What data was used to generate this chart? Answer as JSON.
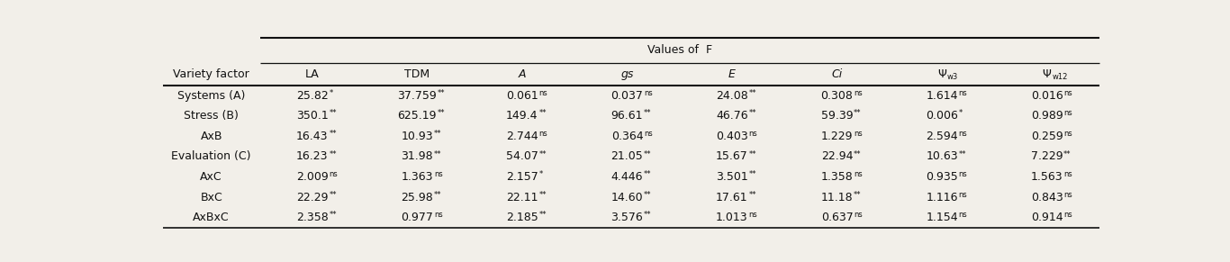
{
  "span_header": "Values of  F",
  "col_headers": [
    "Variety factor",
    "LA",
    "TDM",
    "A",
    "gs",
    "E",
    "Ci",
    "Ψw3",
    "Ψw12"
  ],
  "col_italic": [
    false,
    false,
    false,
    true,
    true,
    true,
    true,
    false,
    false
  ],
  "rows": [
    {
      "label": "Systems (A)",
      "values": [
        "25.82",
        "37.759",
        "0.061",
        "0.037",
        "24.08",
        "0.308",
        "1.614",
        "0.016"
      ],
      "sups": [
        "*",
        "**",
        "ns",
        "ns",
        "**",
        "ns",
        "ns",
        "ns"
      ]
    },
    {
      "label": "Stress (B)",
      "values": [
        "350.1",
        "625.19",
        "149.4",
        "96.61",
        "46.76",
        "59.39",
        "0.006",
        "0.989"
      ],
      "sups": [
        "**",
        "**",
        "**",
        "**",
        "**",
        "**",
        "*",
        "ns"
      ]
    },
    {
      "label": "AxB",
      "values": [
        "16.43",
        "10.93",
        "2.744",
        "0.364",
        "0.403",
        "1.229",
        "2.594",
        "0.259"
      ],
      "sups": [
        "**",
        "**",
        "ns",
        "ns",
        "ns",
        "ns",
        "ns",
        "ns"
      ]
    },
    {
      "label": "Evaluation (C)",
      "values": [
        "16.23",
        "31.98",
        "54.07",
        "21.05",
        "15.67",
        "22.94",
        "10.63",
        "7.229"
      ],
      "sups": [
        "**",
        "**",
        "**",
        "**",
        "**",
        "**",
        "**",
        "**"
      ]
    },
    {
      "label": "AxC",
      "values": [
        "2.009",
        "1.363",
        "2.157",
        "4.446",
        "3.501",
        "1.358",
        "0.935",
        "1.563"
      ],
      "sups": [
        "ns",
        "ns",
        "*",
        "**",
        "**",
        "ns",
        "ns",
        "ns"
      ]
    },
    {
      "label": "BxC",
      "values": [
        "22.29",
        "25.98",
        "22.11",
        "14.60",
        "17.61",
        "11.18",
        "1.116",
        "0.843"
      ],
      "sups": [
        "**",
        "**",
        "**",
        "**",
        "**",
        "**",
        "ns",
        "ns"
      ]
    },
    {
      "label": "AxBxC",
      "values": [
        "2.358",
        "0.977",
        "2.185",
        "3.576",
        "1.013",
        "0.637",
        "1.154",
        "0.914"
      ],
      "sups": [
        "**",
        "ns",
        "**",
        "**",
        "ns",
        "ns",
        "ns",
        "ns"
      ]
    }
  ],
  "bg_color": "#f2efe9",
  "text_color": "#111111",
  "line_color": "#111111",
  "fs_main": 9.0,
  "fs_sup": 6.0,
  "fs_header_label": 9.0
}
